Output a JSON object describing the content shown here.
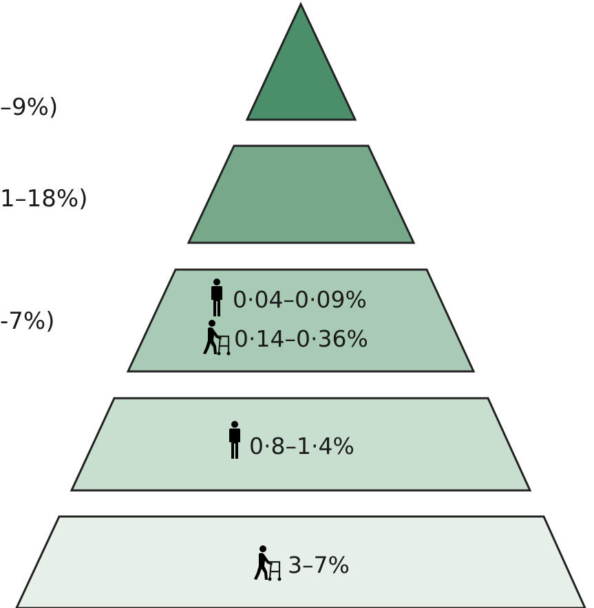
{
  "left_labels": [
    {
      "id": "tier1",
      "text": "–9%)"
    },
    {
      "id": "tier2",
      "text": "1–18%)"
    },
    {
      "id": "tier3",
      "text": "-7%)"
    }
  ],
  "tiers": [
    {
      "id": "tier1",
      "fill": "#4a8f6a",
      "stats": []
    },
    {
      "id": "tier2",
      "fill": "#75a98a",
      "stats": []
    },
    {
      "id": "tier3",
      "fill": "#a9cbb6",
      "stats": [
        {
          "icon": "person-standing-icon",
          "text": "0·04–0·09%"
        },
        {
          "icon": "person-with-walker-icon",
          "text": "0·14–0·36%"
        }
      ]
    },
    {
      "id": "tier4",
      "fill": "#c8dfd0",
      "stats": [
        {
          "icon": "person-standing-icon",
          "text": "0·8–1·4%"
        }
      ]
    },
    {
      "id": "tier5",
      "fill": "#e6f0e9",
      "stats": [
        {
          "icon": "person-with-walker-icon",
          "text": "3–7%"
        }
      ]
    }
  ]
}
